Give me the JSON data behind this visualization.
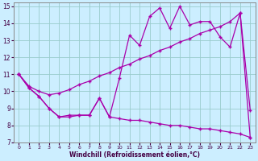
{
  "xlabel": "Windchill (Refroidissement éolien,°C)",
  "bg_color": "#cceeff",
  "line_color": "#aa00aa",
  "grid_color": "#99cccc",
  "xlim": [
    -0.5,
    23.5
  ],
  "ylim": [
    7,
    15.2
  ],
  "xticks": [
    0,
    1,
    2,
    3,
    4,
    5,
    6,
    7,
    8,
    9,
    10,
    11,
    12,
    13,
    14,
    15,
    16,
    17,
    18,
    19,
    20,
    21,
    22,
    23
  ],
  "yticks": [
    7,
    8,
    9,
    10,
    11,
    12,
    13,
    14,
    15
  ],
  "series_jagged_x": [
    0,
    1,
    2,
    3,
    4,
    5,
    6,
    7,
    8,
    9,
    10,
    11,
    12,
    13,
    14,
    15,
    16,
    17,
    18,
    19,
    20,
    21,
    22,
    23
  ],
  "series_jagged_y": [
    11.0,
    10.2,
    9.7,
    9.0,
    8.5,
    8.6,
    8.6,
    8.6,
    9.6,
    8.5,
    10.8,
    13.3,
    12.7,
    14.4,
    14.9,
    13.7,
    15.0,
    13.9,
    14.1,
    14.1,
    13.2,
    12.6,
    14.6,
    8.9
  ],
  "series_smooth_x": [
    0,
    1,
    2,
    3,
    4,
    5,
    6,
    7,
    8,
    9,
    10,
    11,
    12,
    13,
    14,
    15,
    16,
    17,
    18,
    19,
    20,
    21,
    22,
    23
  ],
  "series_smooth_y": [
    11.0,
    10.3,
    10.0,
    9.8,
    9.9,
    10.1,
    10.4,
    10.6,
    10.9,
    11.1,
    11.4,
    11.6,
    11.9,
    12.1,
    12.4,
    12.6,
    12.9,
    13.1,
    13.4,
    13.6,
    13.8,
    14.1,
    14.6,
    7.3
  ],
  "series_bottom_x": [
    0,
    1,
    2,
    3,
    4,
    5,
    6,
    7,
    8,
    9,
    10,
    11,
    12,
    13,
    14,
    15,
    16,
    17,
    18,
    19,
    20,
    21,
    22,
    23
  ],
  "series_bottom_y": [
    11.0,
    10.2,
    9.7,
    9.0,
    8.5,
    8.5,
    8.6,
    8.6,
    9.6,
    8.5,
    8.4,
    8.3,
    8.3,
    8.2,
    8.1,
    8.0,
    8.0,
    7.9,
    7.8,
    7.8,
    7.7,
    7.6,
    7.5,
    7.3
  ]
}
